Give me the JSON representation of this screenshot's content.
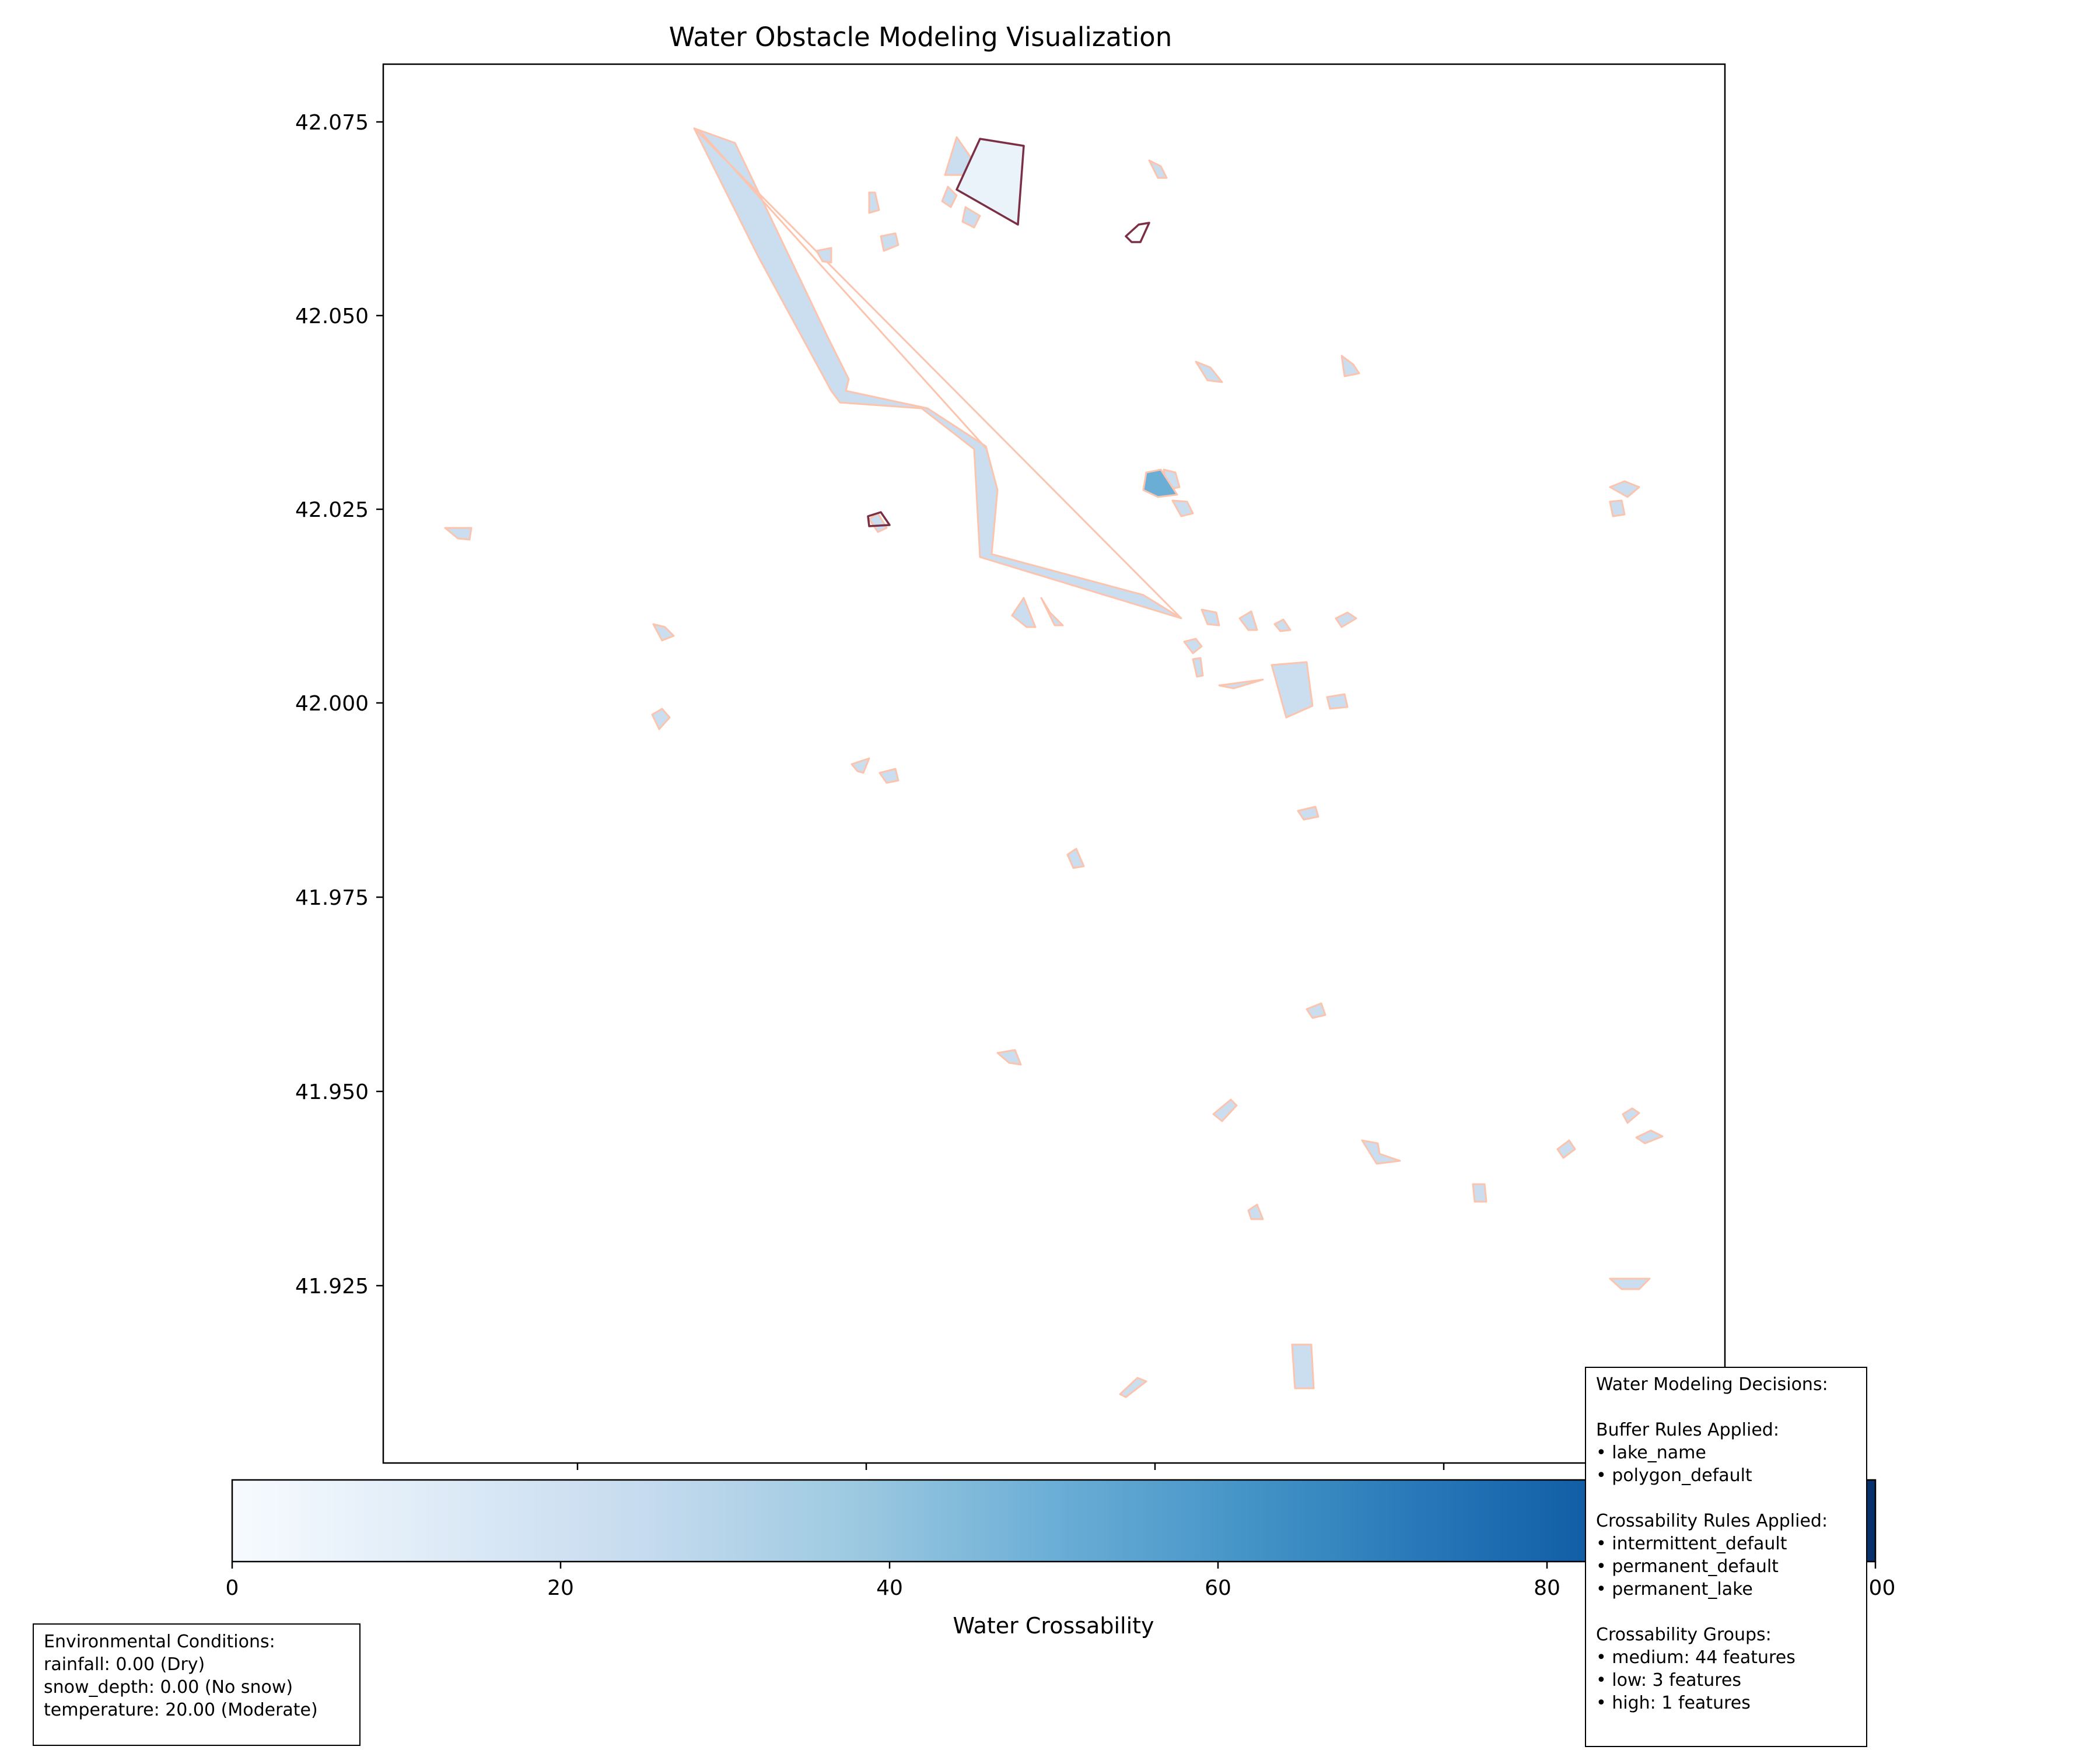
{
  "title": "Water Obstacle Modeling Visualization",
  "map": {
    "xlim": [
      0,
      1
    ],
    "ylim": [
      41.9,
      42.083
    ],
    "y_ticks": [
      "41.925",
      "41.950",
      "41.975",
      "42.000",
      "42.025",
      "42.050",
      "42.075"
    ]
  },
  "colors": {
    "feature_fill_medium": "#cbdef0",
    "feature_fill_high": "#6aaed6",
    "feature_fill_selected": "#eaf2fa",
    "feature_edge": "#fcc3ad",
    "highlight_edge": "#7a2f45",
    "colormap": "Blues"
  },
  "colorbar": {
    "label": "Water Crossability",
    "range": [
      0,
      100
    ],
    "ticks": [
      "0",
      "20",
      "40",
      "60",
      "80",
      "100"
    ]
  },
  "environment": {
    "lines": [
      "Environmental Conditions:",
      "rainfall: 0.00 (Dry)",
      "snow_depth: 0.00 (No snow)",
      "temperature: 20.00 (Moderate)"
    ]
  },
  "decisions": {
    "lines": [
      "Water Modeling Decisions:",
      "",
      "Buffer Rules Applied:",
      "• lake_name",
      "• polygon_default",
      "",
      "Crossability Rules Applied:",
      "• intermittent_default",
      "• permanent_default",
      "• permanent_lake",
      "",
      "Crossability Groups:",
      "• medium: 44 features",
      "• low: 3 features",
      "• high: 1 features"
    ]
  }
}
